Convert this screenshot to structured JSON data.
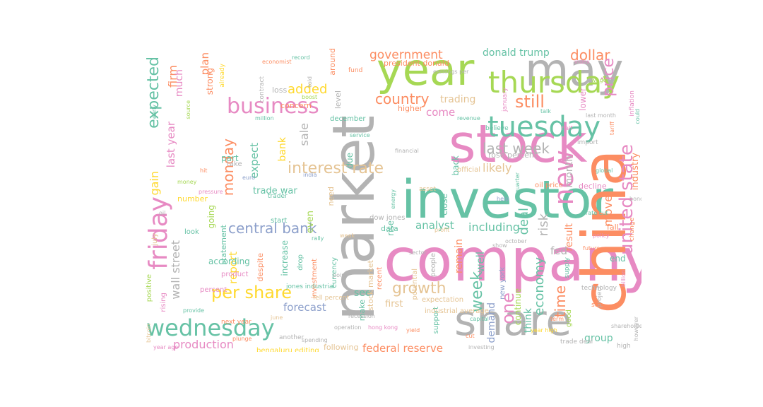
{
  "palette": {
    "teal": "#66c2a5",
    "orange": "#fc8d62",
    "blue": "#8da0cb",
    "pink": "#e78ac3",
    "lime": "#a6d854",
    "yellow": "#ffd92f",
    "tan": "#e5c494",
    "gray": "#b3b3b3"
  },
  "words": [
    {
      "text": "company",
      "color": "pink"
    },
    {
      "text": "market",
      "color": "gray"
    },
    {
      "text": "investor",
      "color": "teal"
    },
    {
      "text": "stock",
      "color": "pink"
    },
    {
      "text": "china",
      "color": "orange"
    },
    {
      "text": "share",
      "color": "gray"
    },
    {
      "text": "year",
      "color": "lime"
    },
    {
      "text": "may",
      "color": "gray"
    },
    {
      "text": "thursday",
      "color": "lime"
    },
    {
      "text": "tuesday",
      "color": "teal"
    },
    {
      "text": "wednesday",
      "color": "teal"
    },
    {
      "text": "friday",
      "color": "pink"
    },
    {
      "text": "business",
      "color": "pink"
    },
    {
      "text": "new",
      "color": "pink"
    },
    {
      "text": "interest rate",
      "color": "tan"
    },
    {
      "text": "united state",
      "color": "pink"
    },
    {
      "text": "per share",
      "color": "yellow"
    },
    {
      "text": "growth",
      "color": "tan"
    },
    {
      "text": "central bank",
      "color": "blue"
    },
    {
      "text": "wall street",
      "color": "gray"
    },
    {
      "text": "government",
      "color": "orange"
    },
    {
      "text": "country",
      "color": "orange"
    },
    {
      "text": "expected",
      "color": "teal"
    },
    {
      "text": "week",
      "color": "teal"
    },
    {
      "text": "still",
      "color": "orange"
    },
    {
      "text": "last week",
      "color": "gray"
    },
    {
      "text": "dollar",
      "color": "orange"
    },
    {
      "text": "donald trump",
      "color": "teal"
    },
    {
      "text": "monday",
      "color": "orange"
    },
    {
      "text": "economy",
      "color": "teal"
    },
    {
      "text": "added",
      "color": "yellow"
    },
    {
      "text": "production",
      "color": "pink"
    },
    {
      "text": "federal reserve",
      "color": "orange"
    },
    {
      "text": "time",
      "color": "orange"
    },
    {
      "text": "one",
      "color": "pink"
    },
    {
      "text": "risk",
      "color": "gray"
    },
    {
      "text": "price",
      "color": "pink"
    },
    {
      "text": "likely",
      "color": "tan"
    },
    {
      "text": "analyst",
      "color": "teal"
    },
    {
      "text": "including",
      "color": "teal"
    },
    {
      "text": "forecast",
      "color": "blue"
    },
    {
      "text": "report",
      "color": "yellow"
    },
    {
      "text": "group",
      "color": "teal"
    },
    {
      "text": "deal",
      "color": "teal"
    },
    {
      "text": "think",
      "color": "teal"
    },
    {
      "text": "gain",
      "color": "yellow"
    },
    {
      "text": "last year",
      "color": "pink"
    },
    {
      "text": "firm",
      "color": "orange"
    },
    {
      "text": "much",
      "color": "pink"
    },
    {
      "text": "plan",
      "color": "orange"
    },
    {
      "text": "expect",
      "color": "teal"
    },
    {
      "text": "bank",
      "color": "yellow"
    },
    {
      "text": "sale",
      "color": "gray"
    },
    {
      "text": "month",
      "color": "gray"
    },
    {
      "text": "move",
      "color": "orange"
    },
    {
      "text": "demand",
      "color": "blue"
    },
    {
      "text": "trade war",
      "color": "teal"
    },
    {
      "text": "come",
      "color": "pink"
    },
    {
      "text": "trading",
      "color": "tan"
    },
    {
      "text": "fed",
      "color": "gray"
    },
    {
      "text": "result",
      "color": "orange"
    },
    {
      "text": "well",
      "color": "teal"
    },
    {
      "text": "see",
      "color": "teal"
    },
    {
      "text": "remain",
      "color": "orange"
    },
    {
      "text": "first",
      "color": "tan"
    },
    {
      "text": "continue",
      "color": "lime"
    },
    {
      "text": "new york",
      "color": "blue"
    },
    {
      "text": "strong",
      "color": "orange"
    },
    {
      "text": "president donald",
      "color": "orange"
    },
    {
      "text": "industry",
      "color": "orange"
    },
    {
      "text": "going",
      "color": "lime"
    },
    {
      "text": "even",
      "color": "lime"
    },
    {
      "text": "end",
      "color": "teal"
    },
    {
      "text": "fall",
      "color": "orange"
    },
    {
      "text": "decline",
      "color": "pink"
    },
    {
      "text": "lower",
      "color": "pink"
    },
    {
      "text": "stock market",
      "color": "tan"
    },
    {
      "text": "higher",
      "color": "orange"
    },
    {
      "text": "rise",
      "color": "teal"
    },
    {
      "text": "data",
      "color": "teal"
    },
    {
      "text": "dow jones",
      "color": "gray"
    },
    {
      "text": "increase",
      "color": "teal"
    },
    {
      "text": "expectation",
      "color": "tan"
    },
    {
      "text": "following",
      "color": "tan"
    },
    {
      "text": "according",
      "color": "teal"
    },
    {
      "text": "back",
      "color": "teal"
    },
    {
      "text": "due",
      "color": "teal"
    },
    {
      "text": "level",
      "color": "gray"
    },
    {
      "text": "need",
      "color": "tan"
    },
    {
      "text": "oil price",
      "color": "orange"
    },
    {
      "text": "close",
      "color": "teal"
    },
    {
      "text": "make",
      "color": "teal"
    },
    {
      "text": "statement",
      "color": "teal"
    },
    {
      "text": "number",
      "color": "yellow"
    },
    {
      "text": "positive",
      "color": "lime"
    },
    {
      "text": "july",
      "color": "tan"
    },
    {
      "text": "rising",
      "color": "pink"
    },
    {
      "text": "rose percent",
      "color": "gray"
    },
    {
      "text": "official",
      "color": "tan"
    },
    {
      "text": "people",
      "color": "gray"
    },
    {
      "text": "part",
      "color": "teal"
    },
    {
      "text": "loss",
      "color": "gray"
    },
    {
      "text": "around",
      "color": "orange"
    },
    {
      "text": "concern",
      "color": "orange"
    },
    {
      "text": "december",
      "color": "teal"
    },
    {
      "text": "despite",
      "color": "orange"
    },
    {
      "text": "drop",
      "color": "teal"
    },
    {
      "text": "investment",
      "color": "orange"
    },
    {
      "text": "currency",
      "color": "teal"
    },
    {
      "text": "recent",
      "color": "orange"
    },
    {
      "text": "potential",
      "color": "tan"
    },
    {
      "text": "support",
      "color": "teal"
    },
    {
      "text": "industrial average",
      "color": "tan"
    },
    {
      "text": "bengaluru editing",
      "color": "yellow"
    },
    {
      "text": "another",
      "color": "gray"
    },
    {
      "text": "product",
      "color": "pink"
    },
    {
      "text": "percent",
      "color": "pink"
    },
    {
      "text": "technology",
      "color": "gray"
    },
    {
      "text": "change",
      "color": "orange"
    },
    {
      "text": "high",
      "color": "gray"
    },
    {
      "text": "jones industrial",
      "color": "teal"
    },
    {
      "text": "contract",
      "color": "gray"
    },
    {
      "text": "india",
      "color": "blue"
    },
    {
      "text": "import",
      "color": "gray"
    },
    {
      "text": "set",
      "color": "orange"
    },
    {
      "text": "good",
      "color": "lime"
    },
    {
      "text": "supply",
      "color": "teal"
    },
    {
      "text": "trade deal",
      "color": "gray"
    },
    {
      "text": "start",
      "color": "teal"
    },
    {
      "text": "take",
      "color": "gray"
    },
    {
      "text": "look",
      "color": "teal"
    },
    {
      "text": "already",
      "color": "yellow"
    },
    {
      "text": "january",
      "color": "pink"
    },
    {
      "text": "fund",
      "color": "orange"
    },
    {
      "text": "project",
      "color": "gray"
    },
    {
      "text": "believe",
      "color": "teal"
    },
    {
      "text": "inflation",
      "color": "pink"
    },
    {
      "text": "earnings per",
      "color": "gray"
    },
    {
      "text": "next year",
      "color": "orange"
    },
    {
      "text": "trader",
      "color": "teal"
    },
    {
      "text": "source",
      "color": "lime"
    },
    {
      "text": "fell percent",
      "color": "tan"
    },
    {
      "text": "recession",
      "color": "gray"
    },
    {
      "text": "asset",
      "color": "tan"
    },
    {
      "text": "year ago",
      "color": "pink"
    },
    {
      "text": "last month",
      "color": "gray"
    },
    {
      "text": "tariff",
      "color": "orange"
    },
    {
      "text": "record",
      "color": "teal"
    },
    {
      "text": "june",
      "color": "tan"
    },
    {
      "text": "billion",
      "color": "pink"
    },
    {
      "text": "told",
      "color": "gray"
    },
    {
      "text": "help",
      "color": "blue"
    },
    {
      "text": "provide",
      "color": "teal"
    },
    {
      "text": "operation",
      "color": "gray"
    },
    {
      "text": "cut",
      "color": "orange"
    },
    {
      "text": "early",
      "color": "teal"
    },
    {
      "text": "however",
      "color": "gray"
    },
    {
      "text": "wage",
      "color": "lime"
    },
    {
      "text": "policy",
      "color": "pink"
    },
    {
      "text": "oil",
      "color": "gray"
    },
    {
      "text": "energy",
      "color": "teal"
    },
    {
      "text": "economist",
      "color": "orange"
    },
    {
      "text": "profit",
      "color": "tan"
    },
    {
      "text": "quarter",
      "color": "teal"
    },
    {
      "text": "hong kong",
      "color": "pink"
    },
    {
      "text": "bond",
      "color": "gray"
    },
    {
      "text": "yield",
      "color": "orange"
    },
    {
      "text": "bitcoin",
      "color": "tan"
    },
    {
      "text": "service",
      "color": "teal"
    },
    {
      "text": "october",
      "color": "gray"
    },
    {
      "text": "pressure",
      "color": "pink"
    },
    {
      "text": "future",
      "color": "orange"
    },
    {
      "text": "global",
      "color": "teal"
    },
    {
      "text": "boost",
      "color": "lime"
    },
    {
      "text": "show",
      "color": "gray"
    },
    {
      "text": "export",
      "color": "orange"
    },
    {
      "text": "capital",
      "color": "teal"
    },
    {
      "text": "point",
      "color": "gray"
    },
    {
      "text": "index",
      "color": "pink"
    },
    {
      "text": "euro",
      "color": "blue"
    },
    {
      "text": "talk",
      "color": "teal"
    },
    {
      "text": "investing",
      "color": "gray"
    },
    {
      "text": "term",
      "color": "orange"
    },
    {
      "text": "could",
      "color": "teal"
    },
    {
      "text": "money",
      "color": "lime"
    },
    {
      "text": "spending",
      "color": "gray"
    },
    {
      "text": "hit",
      "color": "orange"
    },
    {
      "text": "rate cut",
      "color": "teal"
    },
    {
      "text": "financial",
      "color": "gray"
    },
    {
      "text": "half",
      "color": "pink"
    },
    {
      "text": "weak",
      "color": "tan"
    },
    {
      "text": "plunge",
      "color": "orange"
    },
    {
      "text": "revenue",
      "color": "teal"
    },
    {
      "text": "sector",
      "color": "gray"
    },
    {
      "text": "year high",
      "color": "yellow"
    },
    {
      "text": "rally",
      "color": "teal"
    },
    {
      "text": "shareholder",
      "color": "gray"
    },
    {
      "text": "million",
      "color": "teal"
    }
  ]
}
